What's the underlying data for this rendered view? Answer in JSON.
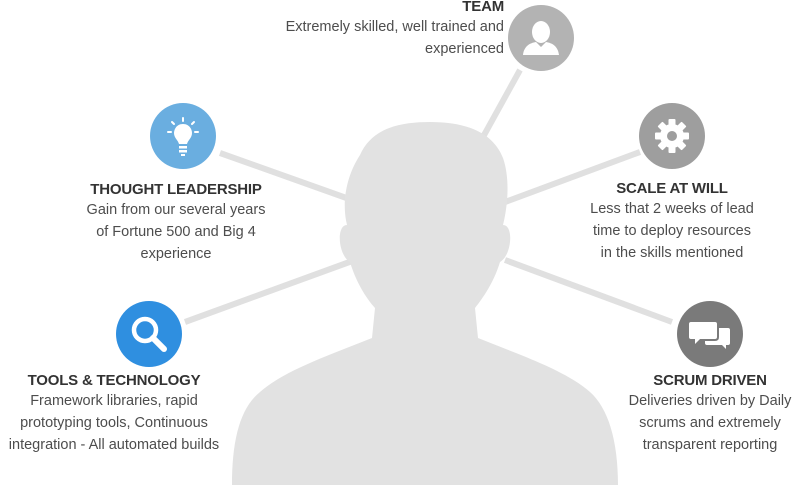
{
  "items": [
    {
      "title": "TEAM",
      "description": [
        "Extremely skilled, well trained and",
        "experienced"
      ],
      "icon": "person-icon",
      "color": "#b3b3b3"
    },
    {
      "title": "THOUGHT LEADERSHIP",
      "description": [
        "Gain from our several years",
        "of Fortune 500 and Big 4",
        "experience"
      ],
      "icon": "lightbulb-icon",
      "color": "#6aaee0"
    },
    {
      "title": "SCALE AT WILL",
      "description": [
        "Less that 2 weeks of lead",
        "time to deploy resources",
        "in the skills mentioned"
      ],
      "icon": "gear-icon",
      "color": "#9e9e9e"
    },
    {
      "title": "TOOLS & TECHNOLOGY",
      "description": [
        "Framework libraries, rapid",
        "prototyping tools, Continuous",
        "integration - All automated builds"
      ],
      "icon": "search-icon",
      "color": "#2f8fe0"
    },
    {
      "title": "SCRUM DRIVEN",
      "description": [
        "Deliveries driven by Daily",
        "scrums and extremely",
        "transparent reporting"
      ],
      "icon": "chat-bubbles-icon",
      "color": "#7a7a7a"
    }
  ],
  "colors": {
    "silhouette": "#e2e2e2",
    "connector": "#e0e0e0"
  }
}
